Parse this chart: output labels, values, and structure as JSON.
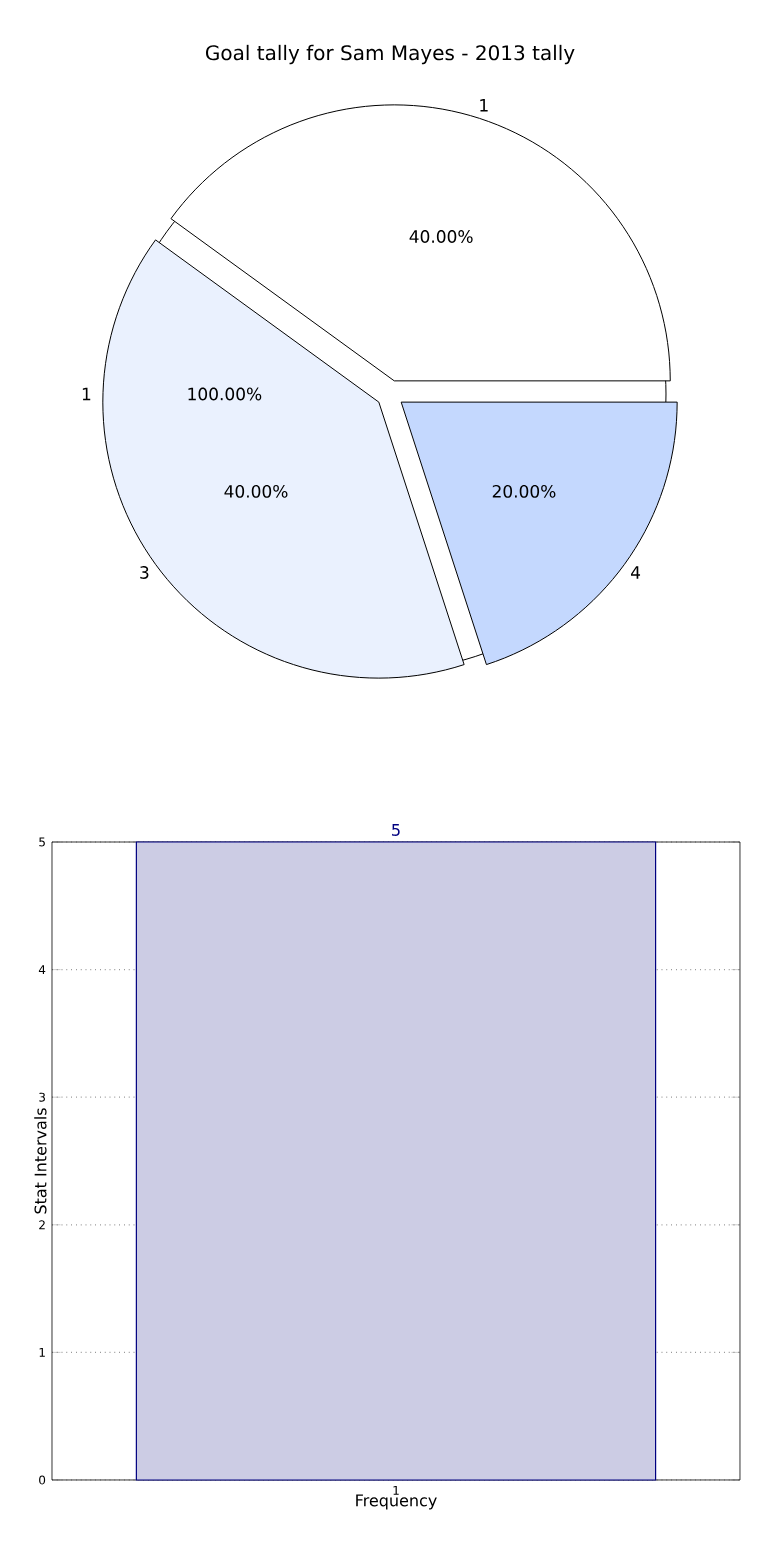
{
  "chart_data": [
    {
      "type": "pie",
      "title": "Goal tally for Sam Mayes - 2013 tally",
      "categories": [
        "1",
        "3",
        "4"
      ],
      "values": [
        40,
        40,
        20
      ],
      "colors": [
        "#ffffff",
        "#eaf1fe",
        "#c4d8fe"
      ],
      "value_labels": [
        "40.00%",
        "40.00%",
        "20.00%"
      ]
    },
    {
      "type": "pie",
      "categories": [
        "1"
      ],
      "values": [
        100
      ],
      "colors": [
        "#ffffff"
      ],
      "value_labels": [
        "100.00%"
      ]
    },
    {
      "type": "bar",
      "categories": [
        "1"
      ],
      "values": [
        5
      ],
      "color": "#cccce4",
      "ylim": [
        0,
        5
      ],
      "yticks": [
        0,
        1,
        2,
        3,
        4,
        5
      ],
      "grid": true,
      "data_labels": true,
      "xlabel": "Frequency",
      "ylabel": "Stat Intervals"
    }
  ]
}
